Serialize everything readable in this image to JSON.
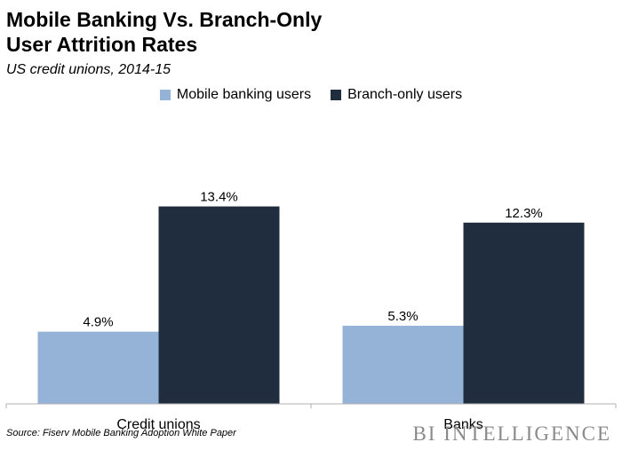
{
  "header": {
    "title_line1": "Mobile Banking Vs. Branch-Only",
    "title_line2": "User Attrition Rates",
    "subtitle": "US credit unions, 2014-15"
  },
  "footer": {
    "source": "Source: Fiserv Mobile Banking Adoption White Paper",
    "brand": "BI INTELLIGENCE"
  },
  "colors": {
    "mobile": "#95b3d7",
    "branch": "#1f2d3f",
    "axis": "#b0b0b0"
  },
  "chart_data": {
    "type": "bar",
    "categories": [
      "Credit unions",
      "Banks"
    ],
    "series": [
      {
        "name": "Mobile banking users",
        "values": [
          4.9,
          5.3
        ],
        "labels": [
          "4.9%",
          "5.3%"
        ]
      },
      {
        "name": "Branch-only users",
        "values": [
          13.4,
          12.3
        ],
        "labels": [
          "13.4%",
          "12.3%"
        ]
      }
    ],
    "ylim": [
      0,
      16
    ],
    "legend": "top-center",
    "grid": false
  }
}
